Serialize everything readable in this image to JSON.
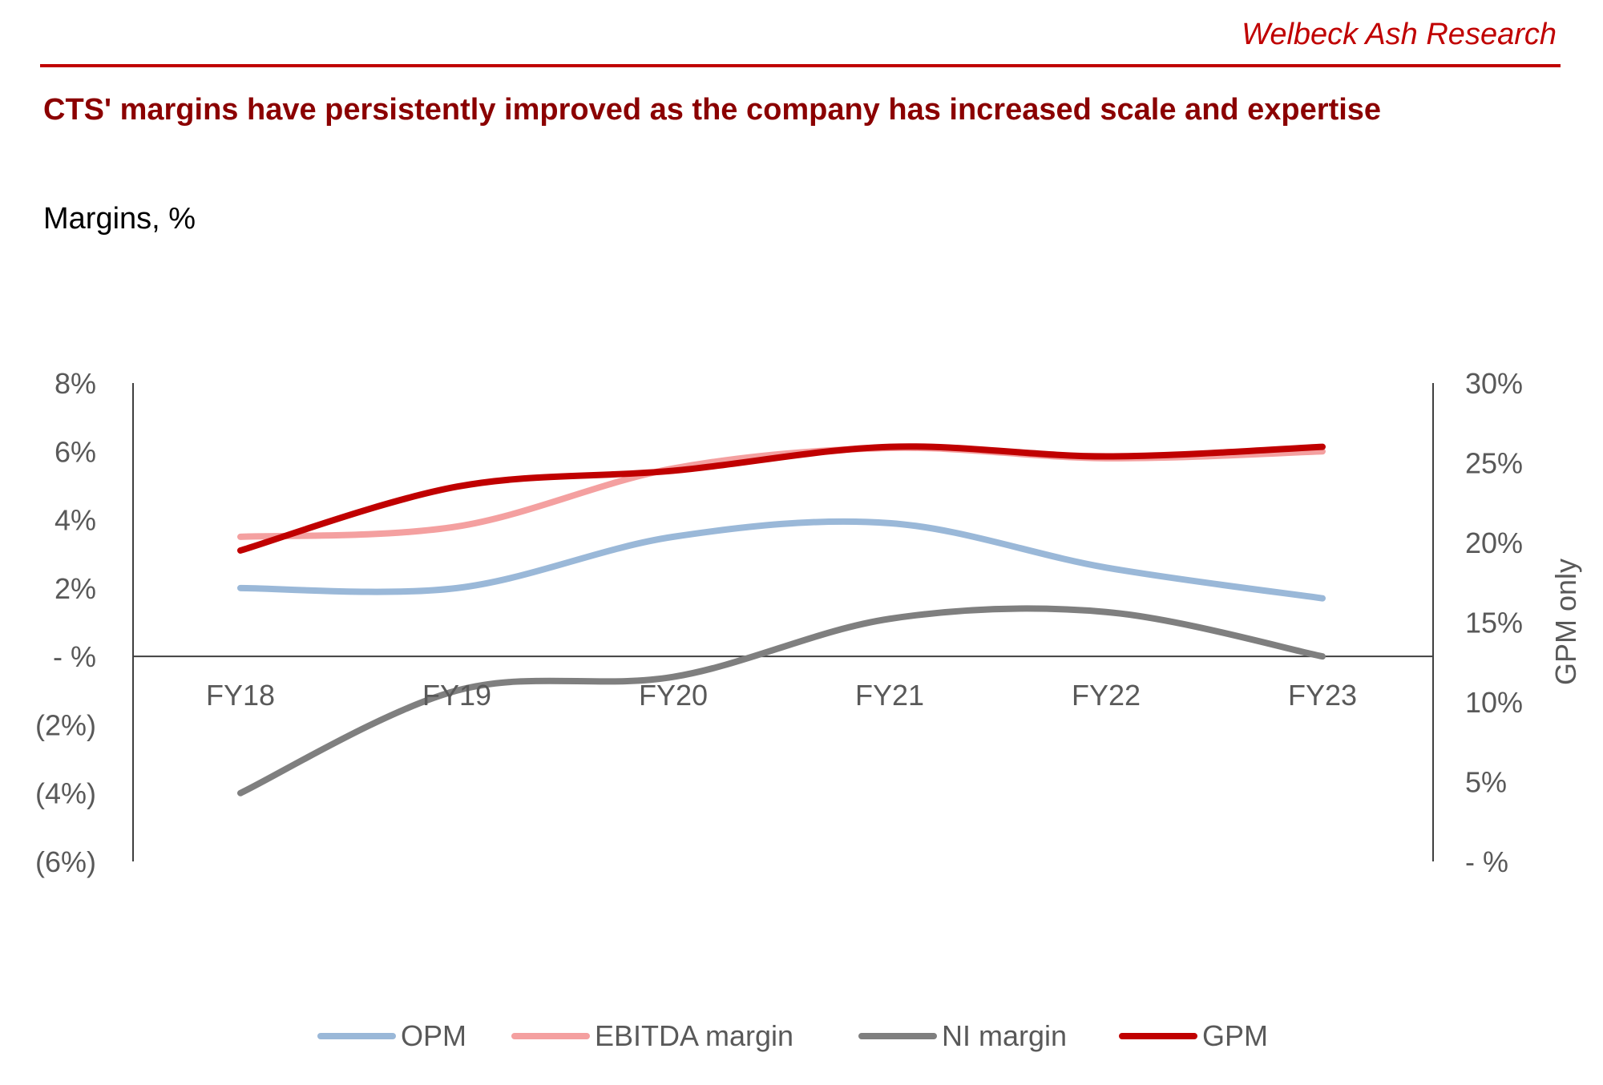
{
  "header": {
    "brand": "Welbeck Ash Research",
    "title": "CTS' margins have persistently improved as the company has increased scale and expertise",
    "subtitle": "Margins, %"
  },
  "colors": {
    "brand": "#c00000",
    "title": "#8b0000",
    "axis": "#595959",
    "opm": "#9ab8d8",
    "ebitda": "#f4a0a0",
    "ni": "#7f7f7f",
    "gpm": "#c00000"
  },
  "chart_data": {
    "type": "line",
    "title": "",
    "xlabel": "",
    "ylabel": "",
    "y2label": "GPM only",
    "categories": [
      "FY18",
      "FY19",
      "FY20",
      "FY21",
      "FY22",
      "FY23"
    ],
    "ylim": [
      -6,
      8
    ],
    "y2lim": [
      0,
      30
    ],
    "y_ticks": [
      8,
      6,
      4,
      2,
      0,
      -2,
      -4,
      -6
    ],
    "y_tick_labels": [
      "8%",
      "6%",
      "4%",
      "2%",
      "- %",
      "(2%)",
      "(4%)",
      "(6%)"
    ],
    "y2_ticks": [
      30,
      25,
      20,
      15,
      10,
      5,
      0
    ],
    "y2_tick_labels": [
      "30%",
      "25%",
      "20%",
      "15%",
      "10%",
      "5%",
      "- %"
    ],
    "series": [
      {
        "name": "OPM",
        "axis": "left",
        "color": "#9ab8d8",
        "values": [
          2.0,
          2.0,
          3.5,
          3.9,
          2.6,
          1.7
        ]
      },
      {
        "name": "EBITDA margin",
        "axis": "left",
        "color": "#f4a0a0",
        "values": [
          3.5,
          3.8,
          5.5,
          6.1,
          5.8,
          6.0
        ]
      },
      {
        "name": "NI margin",
        "axis": "left",
        "color": "#7f7f7f",
        "values": [
          -4.0,
          -1.0,
          -0.6,
          1.1,
          1.3,
          0.0
        ]
      },
      {
        "name": "GPM",
        "axis": "right",
        "color": "#c00000",
        "values": [
          19.5,
          23.5,
          24.5,
          26.0,
          25.4,
          26.0
        ]
      }
    ],
    "legend_position": "bottom",
    "grid": false
  }
}
